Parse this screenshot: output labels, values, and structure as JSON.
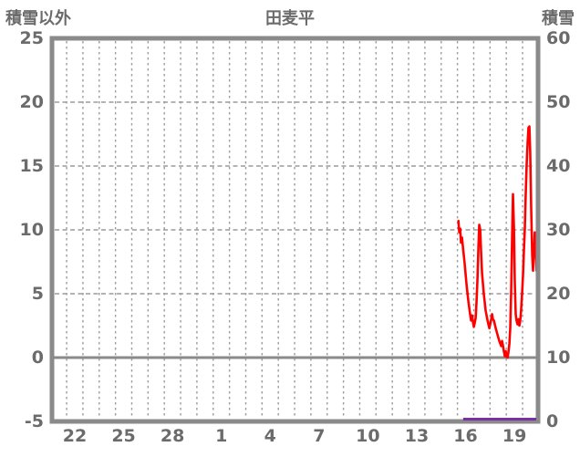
{
  "header": {
    "left_axis_title": "積雪以外",
    "chart_title": "田麦平",
    "right_axis_title": "積雪"
  },
  "colors": {
    "frame": "#8a8a8a",
    "grid": "#9c9c9c",
    "zero_line": "#8a8a8a",
    "text": "#6b6b6b",
    "series_red": "#ff0000",
    "series_purple": "#7b2fa0"
  },
  "chart_data": {
    "type": "line",
    "title": "田麦平",
    "left_axis": {
      "label": "積雪以外",
      "range": [
        -5,
        25
      ],
      "ticks": [
        25,
        20,
        15,
        10,
        5,
        0,
        -5
      ]
    },
    "right_axis": {
      "label": "積雪",
      "range": [
        0,
        60
      ],
      "ticks": [
        60,
        50,
        40,
        30,
        20,
        10,
        0
      ]
    },
    "x_axis": {
      "tick_labels": [
        "22",
        "25",
        "28",
        "1",
        "4",
        "7",
        "10",
        "13",
        "16",
        "19"
      ],
      "tick_positions": [
        3,
        6,
        9,
        12,
        15,
        18,
        21,
        24,
        27,
        30
      ],
      "range": [
        1.6,
        31.45
      ],
      "grid_start": 2.5,
      "grid_step": 1,
      "grid_count": 29
    },
    "grid": true,
    "zero_line_left_value": 0,
    "series": [
      {
        "name": "積雪以外",
        "axis": "left",
        "color": "#ff0000",
        "points": [
          [
            26.56,
            10.7
          ],
          [
            26.61,
            9.8
          ],
          [
            26.67,
            10.1
          ],
          [
            26.72,
            9.0
          ],
          [
            26.78,
            9.4
          ],
          [
            26.84,
            8.6
          ],
          [
            26.95,
            7.3
          ],
          [
            27.06,
            5.7
          ],
          [
            27.17,
            4.4
          ],
          [
            27.28,
            3.4
          ],
          [
            27.34,
            2.9
          ],
          [
            27.4,
            3.3
          ],
          [
            27.45,
            2.8
          ],
          [
            27.51,
            2.4
          ],
          [
            27.56,
            2.7
          ],
          [
            27.62,
            3.1
          ],
          [
            27.67,
            4.3
          ],
          [
            27.73,
            6.2
          ],
          [
            27.79,
            8.6
          ],
          [
            27.84,
            10.4
          ],
          [
            27.9,
            10.0
          ],
          [
            27.96,
            8.0
          ],
          [
            28.01,
            6.6
          ],
          [
            28.12,
            5.0
          ],
          [
            28.23,
            3.7
          ],
          [
            28.35,
            2.9
          ],
          [
            28.46,
            2.3
          ],
          [
            28.51,
            2.6
          ],
          [
            28.57,
            3.0
          ],
          [
            28.63,
            3.4
          ],
          [
            28.68,
            3.0
          ],
          [
            28.74,
            2.9
          ],
          [
            28.85,
            2.3
          ],
          [
            28.96,
            1.8
          ],
          [
            29.07,
            1.3
          ],
          [
            29.19,
            0.9
          ],
          [
            29.24,
            1.3
          ],
          [
            29.3,
            0.9
          ],
          [
            29.35,
            0.5
          ],
          [
            29.41,
            0.1
          ],
          [
            29.47,
            0.5
          ],
          [
            29.52,
            0.1
          ],
          [
            29.58,
            0.0
          ],
          [
            29.63,
            0.4
          ],
          [
            29.69,
            1.1
          ],
          [
            29.74,
            2.3
          ],
          [
            29.8,
            5.1
          ],
          [
            29.86,
            9.6
          ],
          [
            29.91,
            12.8
          ],
          [
            29.97,
            10.1
          ],
          [
            30.02,
            5.9
          ],
          [
            30.08,
            3.4
          ],
          [
            30.13,
            2.9
          ],
          [
            30.19,
            2.6
          ],
          [
            30.25,
            3.0
          ],
          [
            30.3,
            2.5
          ],
          [
            30.36,
            2.9
          ],
          [
            30.41,
            3.7
          ],
          [
            30.47,
            5.0
          ],
          [
            30.53,
            6.6
          ],
          [
            30.58,
            8.4
          ],
          [
            30.64,
            10.1
          ],
          [
            30.69,
            12.6
          ],
          [
            30.75,
            15.1
          ],
          [
            30.81,
            16.9
          ],
          [
            30.86,
            18.0
          ],
          [
            30.92,
            18.1
          ],
          [
            30.97,
            16.1
          ],
          [
            31.03,
            11.6
          ],
          [
            31.09,
            8.0
          ],
          [
            31.14,
            6.8
          ],
          [
            31.2,
            8.2
          ],
          [
            31.25,
            9.8
          ],
          [
            31.31,
            8.6
          ],
          [
            31.36,
            6.8
          ],
          [
            31.4,
            8.6
          ],
          [
            31.44,
            9.6
          ]
        ]
      },
      {
        "name": "積雪",
        "axis": "right",
        "color": "#7b2fa0",
        "points": [
          [
            26.85,
            0
          ],
          [
            31.45,
            0
          ]
        ]
      }
    ]
  }
}
